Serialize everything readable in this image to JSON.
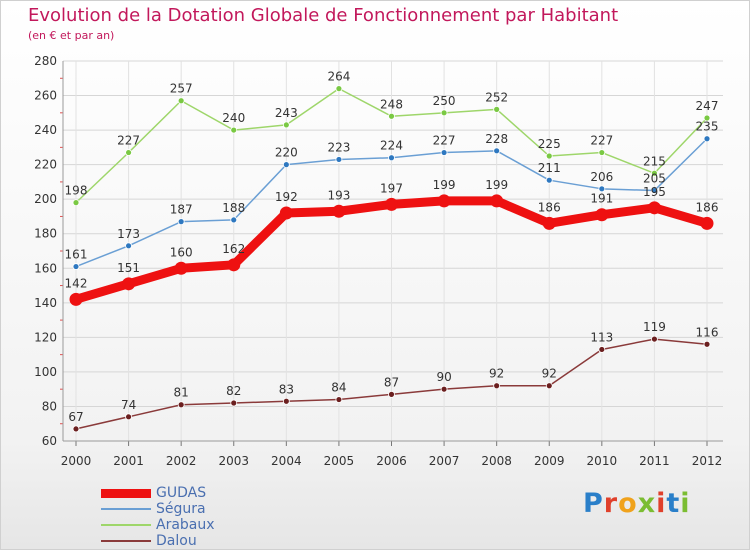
{
  "title": "Evolution de la Dotation Globale de Fonctionnement par Habitant",
  "subtitle": "(en € et par an)",
  "brand": {
    "logo_text": "Proxiti",
    "letter_colors": [
      "#2a7fc9",
      "#e0402b",
      "#f0a21c",
      "#7bbd32",
      "#e0402b",
      "#2a7fc9",
      "#7bbd32"
    ]
  },
  "chart_data": {
    "type": "line",
    "categories": [
      "2000",
      "2001",
      "2002",
      "2003",
      "2004",
      "2005",
      "2006",
      "2007",
      "2008",
      "2009",
      "2010",
      "2011",
      "2012"
    ],
    "ylim": [
      60,
      280
    ],
    "yticks": [
      "60",
      "80",
      "100",
      "120",
      "140",
      "160",
      "180",
      "200",
      "220",
      "240",
      "260",
      "280"
    ],
    "grid": true,
    "legend_position": "bottom-left",
    "series": [
      {
        "name": "GUDAS",
        "values": [
          142,
          151,
          160,
          162,
          192,
          193,
          197,
          199,
          199,
          186,
          191,
          195,
          186
        ],
        "labels": [
          "142",
          "151",
          "160",
          "162",
          "192",
          "193",
          "197",
          "199",
          "199",
          "186",
          "191",
          "195",
          "186"
        ],
        "color": "#ee1111",
        "marker_color": "#ee1111",
        "bold": true
      },
      {
        "name": "Ségura",
        "values": [
          161,
          173,
          187,
          188,
          220,
          223,
          224,
          227,
          228,
          211,
          206,
          205,
          235
        ],
        "labels": [
          "161",
          "173",
          "187",
          "188",
          "220",
          "223",
          "224",
          "227",
          "228",
          "211",
          "206",
          "205",
          "235"
        ],
        "color": "#6a9fd4",
        "marker_color": "#2e78c0",
        "bold": false
      },
      {
        "name": "Arabaux",
        "values": [
          198,
          227,
          257,
          240,
          243,
          264,
          248,
          250,
          252,
          225,
          227,
          215,
          247
        ],
        "labels": [
          "198",
          "227",
          "257",
          "240",
          "243",
          "264",
          "248",
          "250",
          "252",
          "225",
          "227",
          "215",
          "247"
        ],
        "color": "#9ed66a",
        "marker_color": "#7ac943",
        "bold": false
      },
      {
        "name": "Dalou",
        "values": [
          67,
          74,
          81,
          82,
          83,
          84,
          87,
          90,
          92,
          92,
          113,
          119,
          116
        ],
        "labels": [
          "67",
          "74",
          "81",
          "82",
          "83",
          "84",
          "87",
          "90",
          "92",
          "92",
          "113",
          "119",
          "116"
        ],
        "color": "#8a3a3a",
        "marker_color": "#6b1f1f",
        "bold": false
      }
    ]
  }
}
